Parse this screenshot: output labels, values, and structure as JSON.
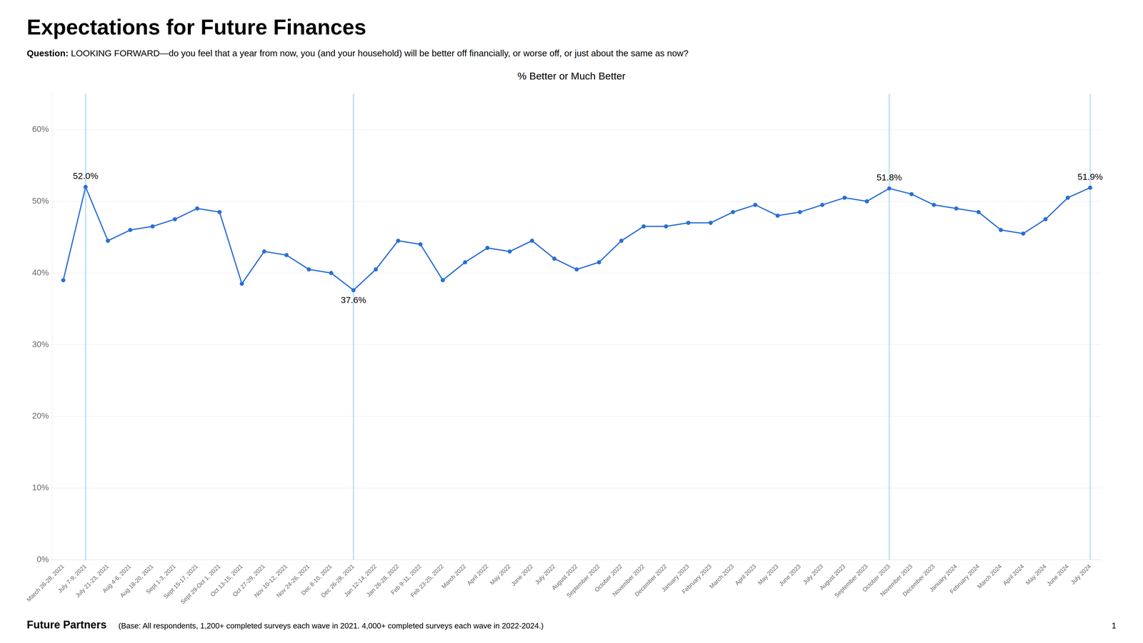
{
  "chart_data": {
    "type": "line",
    "title": "Expectations for Future Finances",
    "question_bold": "Question:",
    "question_text": " LOOKING FORWARD—do you feel that a year from now, you (and your household) will be better off financially, or worse off, or just about the same as now?",
    "subtitle": "% Better or Much Better",
    "footer_bold": "Future Partners",
    "footer_text": "(Base: All respondents, 1,200+ completed surveys each wave in 2021. 4,000+ completed surveys each wave in 2022-2024.)",
    "page_number": "1",
    "categories": [
      "March 26-28, 2021",
      "July 7-9, 2021",
      "July 21-23, 2021",
      "Aug 4-6, 2021",
      "Aug 18-20, 2021",
      "Sept 1-3, 2021",
      "Sept 15-17, 2021",
      "Sept 29-Oct 1, 2021",
      "Oct 13-15, 2021",
      "Oct 27-29, 2021",
      "Nov 10-12, 2021",
      "Nov 24-26, 2021",
      "Dec 8-10, 2021",
      "Dec 26-28, 2021",
      "Jan 12-14, 2022",
      "Jan 26-28, 2022",
      "Feb 9-11, 2022",
      "Feb 23-25, 2022",
      "March 2022",
      "April 2022",
      "May 2022",
      "June 2022",
      "July 2022",
      "August 2022",
      "September 2022",
      "October 2022",
      "November 2022",
      "December 2022",
      "January 2023",
      "February 2023",
      "March 2023",
      "April 2023",
      "May 2023",
      "June 2023",
      "July 2023",
      "August 2023",
      "September 2023",
      "October 2023",
      "November 2023",
      "December 2023",
      "January 2024",
      "February 2024",
      "March 2024",
      "April 2024",
      "May 2024",
      "June 2024",
      "July 2024"
    ],
    "values": [
      39.0,
      52.0,
      44.5,
      46.0,
      46.5,
      47.5,
      49.0,
      48.5,
      38.5,
      43.0,
      42.5,
      40.5,
      40.0,
      37.6,
      40.5,
      44.5,
      44.0,
      39.0,
      41.5,
      43.5,
      43.0,
      44.5,
      42.0,
      40.5,
      41.5,
      44.5,
      46.5,
      46.5,
      47.0,
      47.0,
      48.5,
      49.5,
      48.0,
      48.5,
      49.5,
      50.5,
      50.0,
      51.8,
      51.0,
      49.5,
      49.0,
      48.5,
      46.0,
      45.5,
      47.5,
      50.5,
      51.9
    ],
    "color": "#2b6fd4",
    "marker": "circle",
    "ylim": [
      0,
      65
    ],
    "yticks": [
      {
        "value": 0,
        "label": "0%"
      },
      {
        "value": 10,
        "label": "10%"
      },
      {
        "value": 20,
        "label": "20%"
      },
      {
        "value": 30,
        "label": "30%"
      },
      {
        "value": 40,
        "label": "40%"
      },
      {
        "value": 50,
        "label": "50%"
      },
      {
        "value": 60,
        "label": "60%"
      }
    ],
    "grid": true,
    "annotations": [
      {
        "category": "July 7-9, 2021",
        "value": 52.0,
        "label": "52.0%",
        "color": "#b8ddf5"
      },
      {
        "category": "Dec 26-28, 2021",
        "value": 37.6,
        "label": "37.6%",
        "color": "#b8ddf5"
      },
      {
        "category": "October 2023",
        "value": 51.8,
        "label": "51.8%",
        "color": "#b8ddf5"
      },
      {
        "category": "July 2024",
        "value": 51.9,
        "label": "51.9%",
        "color": "#b8ddf5"
      }
    ]
  }
}
